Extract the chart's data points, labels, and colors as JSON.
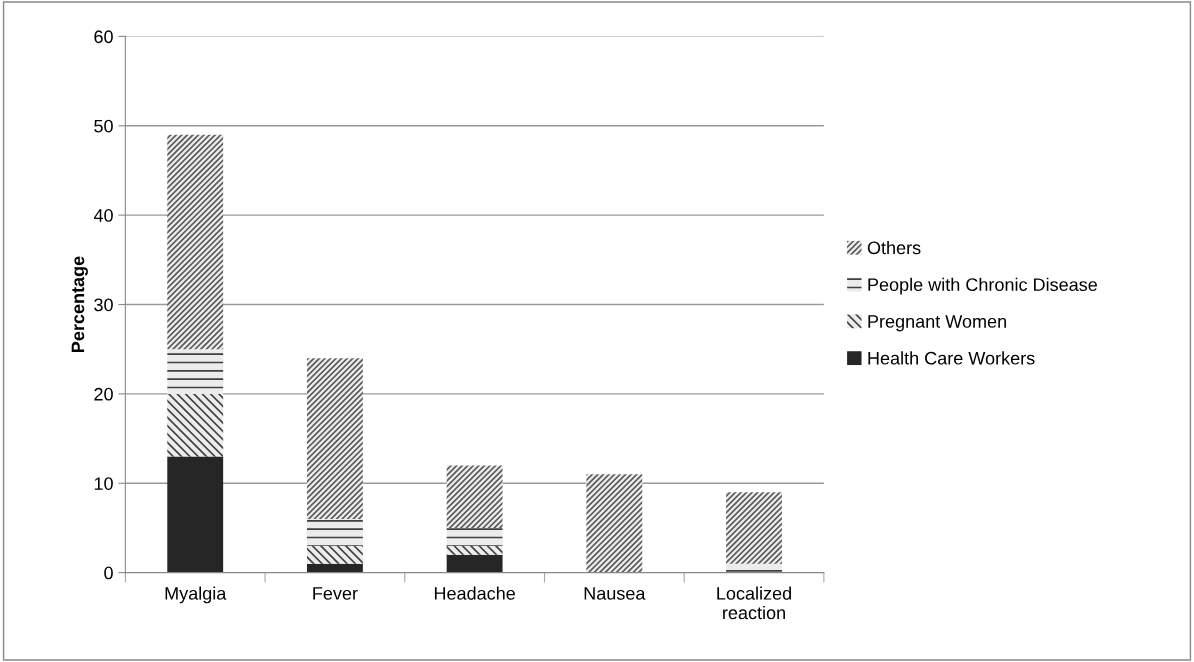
{
  "chart_data": {
    "type": "bar",
    "stacked": true,
    "ylabel": "Percentage",
    "categories": [
      "Myalgia",
      "Fever",
      "Headache",
      "Nausea",
      "Localized\nreaction"
    ],
    "series": [
      {
        "name": "Health Care Workers",
        "color": "#262626",
        "values": [
          13,
          1,
          2,
          0,
          0
        ]
      },
      {
        "name": "Pregnant Women",
        "color": "#404040",
        "values": [
          7,
          2,
          1,
          0,
          0
        ]
      },
      {
        "name": "People with Chronic Disease",
        "color": "#404040",
        "values": [
          5,
          3,
          2,
          0,
          1
        ]
      },
      {
        "name": "Others",
        "color": "#595959",
        "values": [
          24,
          18,
          7,
          11,
          8
        ]
      }
    ],
    "ylim": [
      0,
      60
    ],
    "yticks": [
      0,
      10,
      20,
      30,
      40,
      50,
      60
    ],
    "grid": "y",
    "legend": "right"
  }
}
